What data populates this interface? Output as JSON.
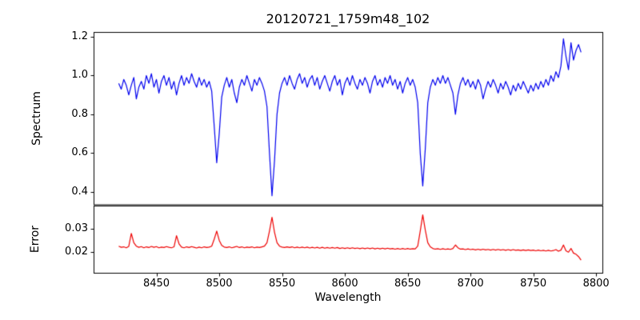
{
  "chart_data": {
    "type": "line",
    "title": "20120721_1759m48_102",
    "xlabel": "Wavelength",
    "grid": false,
    "legend": "none",
    "xlim": [
      8400,
      8805
    ],
    "xticks": [
      8450,
      8500,
      8550,
      8600,
      8650,
      8700,
      8750,
      8800
    ],
    "xtick_labels": [
      "8450",
      "8500",
      "8550",
      "8600",
      "8650",
      "8700",
      "8750",
      "8800"
    ],
    "panels": [
      {
        "ylabel": "Spectrum",
        "color": "#0000ee",
        "ylim": [
          0.335,
          1.225
        ],
        "yticks": [
          0.4,
          0.6,
          0.8,
          1.0,
          1.2
        ],
        "ytick_labels": [
          "0.4",
          "0.6",
          "0.8",
          "1.0",
          "1.2"
        ],
        "x_start": 8420,
        "x_step": 2,
        "features": "noisy continuum near 1.0 with absorption lines at 8498, 8542, 8662 (Ca II triplet), weaker dip at 8688, spiky rise to ~1.2 near 8775-8788",
        "values": [
          0.96,
          0.93,
          0.98,
          0.95,
          0.9,
          0.95,
          0.99,
          0.88,
          0.94,
          0.97,
          0.93,
          1.0,
          0.96,
          1.01,
          0.94,
          0.98,
          0.91,
          0.97,
          1.0,
          0.95,
          0.99,
          0.93,
          0.97,
          0.9,
          0.96,
          1.0,
          0.95,
          0.99,
          0.96,
          1.01,
          0.97,
          0.94,
          0.99,
          0.95,
          0.98,
          0.94,
          0.97,
          0.92,
          0.74,
          0.55,
          0.7,
          0.89,
          0.95,
          0.99,
          0.94,
          0.98,
          0.91,
          0.86,
          0.94,
          0.98,
          0.95,
          1.0,
          0.96,
          0.92,
          0.98,
          0.95,
          0.99,
          0.96,
          0.92,
          0.84,
          0.6,
          0.38,
          0.56,
          0.8,
          0.91,
          0.96,
          0.99,
          0.95,
          1.0,
          0.96,
          0.93,
          0.98,
          1.01,
          0.96,
          0.99,
          0.94,
          0.98,
          1.0,
          0.95,
          0.99,
          0.93,
          0.97,
          1.0,
          0.96,
          0.92,
          0.97,
          1.0,
          0.95,
          0.98,
          0.9,
          0.96,
          0.99,
          0.95,
          1.0,
          0.96,
          0.93,
          0.98,
          0.95,
          0.99,
          0.96,
          0.91,
          0.97,
          1.0,
          0.95,
          0.98,
          0.94,
          0.99,
          0.96,
          1.0,
          0.95,
          0.98,
          0.93,
          0.97,
          0.91,
          0.96,
          0.99,
          0.95,
          0.98,
          0.94,
          0.86,
          0.6,
          0.43,
          0.62,
          0.86,
          0.94,
          0.98,
          0.95,
          0.99,
          0.96,
          1.0,
          0.96,
          0.99,
          0.95,
          0.91,
          0.8,
          0.9,
          0.96,
          0.99,
          0.95,
          0.98,
          0.94,
          0.97,
          0.93,
          0.98,
          0.95,
          0.88,
          0.93,
          0.97,
          0.94,
          0.98,
          0.95,
          0.91,
          0.96,
          0.93,
          0.97,
          0.94,
          0.9,
          0.95,
          0.92,
          0.96,
          0.93,
          0.97,
          0.94,
          0.91,
          0.95,
          0.92,
          0.96,
          0.93,
          0.97,
          0.94,
          0.98,
          0.95,
          1.0,
          0.97,
          1.02,
          0.99,
          1.05,
          1.19,
          1.1,
          1.03,
          1.17,
          1.08,
          1.13,
          1.16,
          1.12
        ]
      },
      {
        "ylabel": "Error",
        "color": "#ee0000",
        "ylim": [
          0.011,
          0.04
        ],
        "yticks": [
          0.02,
          0.03
        ],
        "ytick_labels": [
          "0.02",
          "0.03"
        ],
        "x_start": 8420,
        "x_step": 2,
        "features": "baseline ~0.022 slowly declining to ~0.020, spikes at 8430, 8466, 8498, 8542 (0.035), 8662 (0.036), small bumps near 8688 and 8774, drop to ~0.016 at right end",
        "values": [
          0.0225,
          0.022,
          0.0222,
          0.0218,
          0.0224,
          0.028,
          0.024,
          0.0225,
          0.022,
          0.0223,
          0.0218,
          0.0222,
          0.0219,
          0.0224,
          0.022,
          0.0223,
          0.0218,
          0.0221,
          0.0219,
          0.0223,
          0.022,
          0.0218,
          0.0222,
          0.027,
          0.0235,
          0.0221,
          0.0218,
          0.0222,
          0.0219,
          0.0223,
          0.022,
          0.0217,
          0.0221,
          0.0218,
          0.0222,
          0.0219,
          0.0221,
          0.0225,
          0.0255,
          0.029,
          0.025,
          0.0228,
          0.0221,
          0.0219,
          0.0222,
          0.0218,
          0.0221,
          0.0224,
          0.0219,
          0.0222,
          0.0218,
          0.0221,
          0.0219,
          0.0222,
          0.0218,
          0.0221,
          0.0219,
          0.0222,
          0.0225,
          0.024,
          0.029,
          0.035,
          0.0285,
          0.024,
          0.0225,
          0.0221,
          0.0219,
          0.0222,
          0.0219,
          0.0222,
          0.0218,
          0.0221,
          0.0218,
          0.0221,
          0.0218,
          0.0221,
          0.0217,
          0.022,
          0.0217,
          0.022,
          0.0216,
          0.022,
          0.0216,
          0.0219,
          0.0216,
          0.0219,
          0.0216,
          0.0219,
          0.0215,
          0.0218,
          0.0215,
          0.0218,
          0.0215,
          0.0218,
          0.0215,
          0.0217,
          0.0214,
          0.0217,
          0.0214,
          0.0217,
          0.0214,
          0.0217,
          0.0213,
          0.0216,
          0.0213,
          0.0216,
          0.0213,
          0.0216,
          0.0213,
          0.0215,
          0.0212,
          0.0215,
          0.0212,
          0.0215,
          0.0212,
          0.0215,
          0.0212,
          0.0214,
          0.0213,
          0.0225,
          0.029,
          0.036,
          0.0295,
          0.024,
          0.0222,
          0.0215,
          0.0212,
          0.0214,
          0.0211,
          0.0214,
          0.0211,
          0.0213,
          0.0211,
          0.0215,
          0.023,
          0.0218,
          0.0212,
          0.0213,
          0.021,
          0.0213,
          0.021,
          0.0212,
          0.0209,
          0.0212,
          0.0209,
          0.0212,
          0.0209,
          0.0211,
          0.0208,
          0.0211,
          0.0208,
          0.0211,
          0.0208,
          0.021,
          0.0207,
          0.021,
          0.0207,
          0.021,
          0.0207,
          0.0209,
          0.0206,
          0.0209,
          0.0206,
          0.0209,
          0.0206,
          0.0208,
          0.0205,
          0.0208,
          0.0205,
          0.0207,
          0.0204,
          0.0207,
          0.0204,
          0.0206,
          0.021,
          0.0203,
          0.0208,
          0.023,
          0.0205,
          0.0199,
          0.0215,
          0.0195,
          0.019,
          0.018,
          0.0165
        ]
      }
    ]
  }
}
